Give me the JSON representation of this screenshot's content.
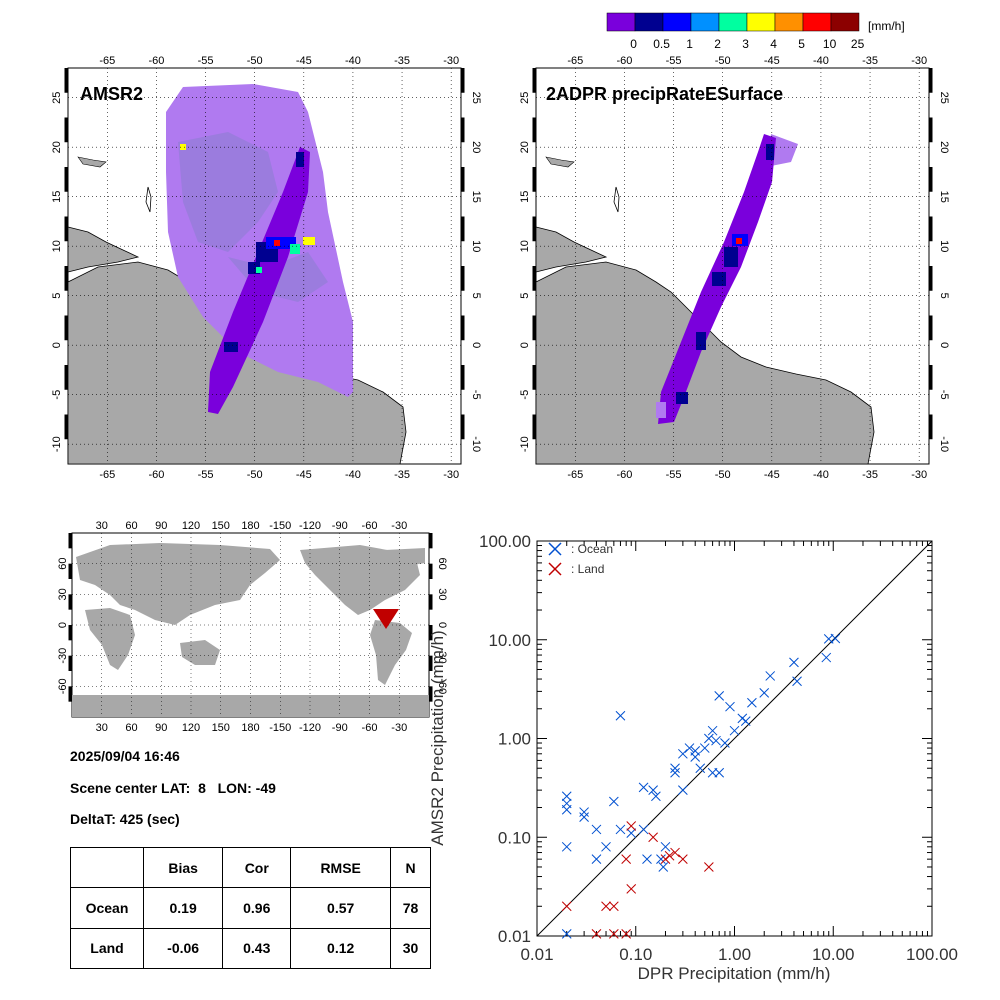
{
  "colorbar": {
    "unit": "[mm/h]",
    "labels": [
      "0",
      "0.5",
      "1",
      "2",
      "3",
      "4",
      "5",
      "10",
      "25"
    ],
    "colors": [
      "#7a00dc",
      "#000090",
      "#0000ff",
      "#0090ff",
      "#00ffa0",
      "#ffff00",
      "#ff9000",
      "#ff0000",
      "#8c0000"
    ]
  },
  "maps": {
    "left_title": "AMSR2",
    "right_title": "2ADPR precipRateESurface",
    "lon_ticks": [
      "-65",
      "-60",
      "-55",
      "-50",
      "-45",
      "-40",
      "-35",
      "-30"
    ],
    "lat_ticks": [
      "-10",
      "-5",
      "0",
      "5",
      "10",
      "15",
      "20",
      "25"
    ],
    "land_color": "#a8a8a8",
    "light_rain_color": "#b07af0",
    "swath_color": "#7a00dc"
  },
  "world_map": {
    "lon_ticks": [
      "30",
      "60",
      "90",
      "120",
      "150",
      "180",
      "-150",
      "-120",
      "-90",
      "-60",
      "-30"
    ],
    "lat_ticks": [
      "-60",
      "-30",
      "0",
      "30",
      "60"
    ],
    "marker_color": "#c00000"
  },
  "info": {
    "datetime": "2025/09/04 16:46",
    "scene_center": "Scene center LAT:  8   LON: -49",
    "deltat": "DeltaT:  425 (sec)"
  },
  "stats": {
    "headers": [
      "",
      "Bias",
      "Cor",
      "RMSE",
      "N"
    ],
    "rows": [
      [
        "Ocean",
        "0.19",
        "0.96",
        "0.57",
        "78"
      ],
      [
        "Land",
        "-0.06",
        "0.43",
        "0.12",
        "30"
      ]
    ]
  },
  "chart_data": {
    "type": "scatter",
    "xlabel": "DPR Precipitation (mm/h)",
    "ylabel": "AMSR2 Precipitation (mm/h)",
    "xscale": "log",
    "yscale": "log",
    "xlim": [
      0.01,
      100
    ],
    "ylim": [
      0.01,
      100
    ],
    "x_tick_labels": [
      "0.01",
      "0.10",
      "1.00",
      "10.00",
      "100.00"
    ],
    "y_tick_labels": [
      "0.01",
      "0.10",
      "1.00",
      "10.00",
      "100.00"
    ],
    "legend_position": "top-left",
    "series": [
      {
        "name": ": Ocean",
        "color": "#0050d0",
        "points": [
          [
            0.02,
            0.26
          ],
          [
            0.02,
            0.22
          ],
          [
            0.02,
            0.19
          ],
          [
            0.02,
            0.08
          ],
          [
            0.02,
            0.009
          ],
          [
            0.03,
            0.18
          ],
          [
            0.03,
            0.16
          ],
          [
            0.04,
            0.12
          ],
          [
            0.04,
            0.06
          ],
          [
            0.05,
            0.08
          ],
          [
            0.06,
            0.23
          ],
          [
            0.07,
            0.12
          ],
          [
            0.07,
            1.7
          ],
          [
            0.09,
            0.11
          ],
          [
            0.12,
            0.32
          ],
          [
            0.13,
            0.06
          ],
          [
            0.15,
            0.3
          ],
          [
            0.16,
            0.26
          ],
          [
            0.18,
            0.06
          ],
          [
            0.19,
            0.05
          ],
          [
            0.2,
            0.08
          ],
          [
            0.25,
            0.45
          ],
          [
            0.25,
            0.5
          ],
          [
            0.3,
            0.7
          ],
          [
            0.35,
            0.8
          ],
          [
            0.4,
            0.75
          ],
          [
            0.4,
            0.65
          ],
          [
            0.45,
            0.5
          ],
          [
            0.5,
            0.8
          ],
          [
            0.55,
            1.0
          ],
          [
            0.6,
            1.2
          ],
          [
            0.6,
            0.45
          ],
          [
            0.7,
            0.45
          ],
          [
            0.7,
            2.7
          ],
          [
            0.8,
            0.9
          ],
          [
            0.9,
            2.1
          ],
          [
            1.0,
            1.2
          ],
          [
            1.2,
            1.6
          ],
          [
            1.3,
            1.5
          ],
          [
            1.5,
            2.3
          ],
          [
            2.0,
            2.9
          ],
          [
            2.3,
            4.3
          ],
          [
            4.0,
            5.9
          ],
          [
            4.3,
            3.8
          ],
          [
            8.5,
            6.6
          ],
          [
            9.0,
            10.2
          ],
          [
            10.5,
            10.3
          ],
          [
            0.65,
            0.95
          ],
          [
            0.3,
            0.3
          ],
          [
            0.12,
            0.12
          ]
        ]
      },
      {
        "name": ": Land",
        "color": "#c00000",
        "points": [
          [
            0.02,
            0.02
          ],
          [
            0.05,
            0.02
          ],
          [
            0.06,
            0.02
          ],
          [
            0.04,
            0.009
          ],
          [
            0.06,
            0.009
          ],
          [
            0.08,
            0.009
          ],
          [
            0.08,
            0.06
          ],
          [
            0.09,
            0.13
          ],
          [
            0.09,
            0.03
          ],
          [
            0.15,
            0.1
          ],
          [
            0.2,
            0.06
          ],
          [
            0.22,
            0.065
          ],
          [
            0.25,
            0.07
          ],
          [
            0.3,
            0.06
          ],
          [
            0.55,
            0.05
          ]
        ]
      }
    ]
  }
}
